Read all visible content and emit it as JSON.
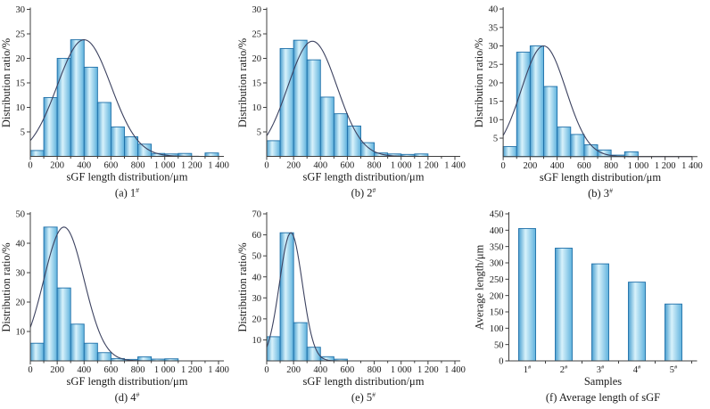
{
  "figure": {
    "colors": {
      "bar_edge": "#1e6fa8",
      "bar_grad_edge1": "#4a9fd0",
      "bar_grad_light": "#d8f2fb",
      "bar_grad_edge2": "#5fb2dd",
      "curve": "#3c4260",
      "axis": "#3f3f3f",
      "text": "#1a1a1a"
    }
  },
  "chart_data": [
    {
      "id": "a",
      "type": "bar",
      "subtype": "histogram_with_fit_curve",
      "caption": "(a) 1#",
      "xlabel": "sGF length distribution/μm",
      "ylabel": "Distribution ratio/%",
      "xlim": [
        0,
        1400
      ],
      "ylim": [
        0,
        30
      ],
      "yticks": [
        5,
        10,
        15,
        20,
        25,
        30
      ],
      "xticks": [
        0,
        200,
        400,
        600,
        800,
        1000,
        1200,
        1400
      ],
      "xtick_labels": [
        "0",
        "200",
        "400",
        "600",
        "800",
        "1 000",
        "1 200",
        "1 400"
      ],
      "bin_width": 100,
      "values": [
        1.2,
        12,
        20,
        23.8,
        18.2,
        11,
        6,
        4,
        2.5,
        0.6,
        0.5,
        0.6,
        0,
        0.7
      ],
      "curve": {
        "peak_x": 400,
        "peak_y": 23.8,
        "sigma": 200
      }
    },
    {
      "id": "b",
      "type": "bar",
      "subtype": "histogram_with_fit_curve",
      "caption": "(b) 2#",
      "xlabel": "sGF length distribution/μm",
      "ylabel": "Distribution ratio/%",
      "xlim": [
        0,
        1400
      ],
      "ylim": [
        0,
        30
      ],
      "yticks": [
        5,
        10,
        15,
        20,
        25,
        30
      ],
      "xticks": [
        0,
        200,
        400,
        600,
        800,
        1000,
        1200,
        1400
      ],
      "xtick_labels": [
        "0",
        "200",
        "400",
        "600",
        "800",
        "1 000",
        "1 200",
        "1 400"
      ],
      "bin_width": 100,
      "values": [
        3.2,
        22,
        23.7,
        19.7,
        12.1,
        8.7,
        6.2,
        2.8,
        0.7,
        0.5,
        0.4,
        0.5
      ],
      "curve": {
        "peak_x": 340,
        "peak_y": 23.5,
        "sigma": 183
      }
    },
    {
      "id": "c",
      "type": "bar",
      "subtype": "histogram_with_fit_curve",
      "caption": "(b) 3#",
      "xlabel": "sGF length distribution/μm",
      "ylabel": "Distribution ratio/%",
      "xlim": [
        0,
        1400
      ],
      "ylim": [
        0,
        40
      ],
      "yticks": [
        5,
        10,
        15,
        20,
        25,
        30,
        35,
        40
      ],
      "xticks": [
        0,
        200,
        400,
        600,
        800,
        1000,
        1200,
        1400
      ],
      "xtick_labels": [
        "0",
        "200",
        "400",
        "600",
        "800",
        "1 000",
        "1 200",
        "1 400"
      ],
      "bin_width": 100,
      "values": [
        2.7,
        28.3,
        30,
        19,
        8,
        6,
        3.2,
        1.8,
        0.4,
        1.3
      ],
      "curve": {
        "peak_x": 300,
        "peak_y": 30,
        "sigma": 165
      }
    },
    {
      "id": "d",
      "type": "bar",
      "subtype": "histogram_with_fit_curve",
      "caption": "(d) 4#",
      "xlabel": "sGF length distribution/μm",
      "ylabel": "Distribution ratio/%",
      "xlim": [
        0,
        1400
      ],
      "ylim": [
        0,
        50
      ],
      "yticks": [
        10,
        20,
        30,
        40,
        50
      ],
      "xticks": [
        0,
        200,
        400,
        600,
        800,
        1000,
        1200,
        1400
      ],
      "xtick_labels": [
        "0",
        "200",
        "400",
        "600",
        "800",
        "1 000",
        "1 200",
        "1 400"
      ],
      "bin_width": 100,
      "values": [
        6,
        45.5,
        24.8,
        12.5,
        6,
        2.8,
        0.8,
        0.5,
        1.4,
        0.6,
        0.7
      ],
      "curve": {
        "peak_x": 250,
        "peak_y": 45.5,
        "sigma": 150
      }
    },
    {
      "id": "e",
      "type": "bar",
      "subtype": "histogram_with_fit_curve",
      "caption": "(e) 5#",
      "xlabel": "sGF length distribution/μm",
      "ylabel": "Distribution ratio/%",
      "xlim": [
        0,
        1400
      ],
      "ylim": [
        0,
        70
      ],
      "yticks": [
        10,
        20,
        30,
        40,
        50,
        60,
        70
      ],
      "xticks": [
        0,
        200,
        400,
        600,
        800,
        1000,
        1200,
        1400
      ],
      "xtick_labels": [
        "0",
        "200",
        "400",
        "600",
        "800",
        "1 000",
        "1 200",
        "1 400"
      ],
      "bin_width": 100,
      "values": [
        11.5,
        61,
        18.2,
        6.5,
        2,
        0.8
      ],
      "curve": {
        "peak_x": 180,
        "peak_y": 61,
        "sigma": 85
      }
    },
    {
      "id": "f",
      "type": "bar",
      "subtype": "category_bar",
      "caption": "(f) Average length of sGF",
      "xlabel": "Samples",
      "ylabel": "Average length/μm",
      "ylim": [
        0,
        450
      ],
      "yticks": [
        0,
        50,
        100,
        150,
        200,
        250,
        300,
        350,
        400,
        450
      ],
      "categories": [
        "1#",
        "2#",
        "3#",
        "4#",
        "5#"
      ],
      "values": [
        405,
        345,
        297,
        241,
        174
      ]
    }
  ]
}
